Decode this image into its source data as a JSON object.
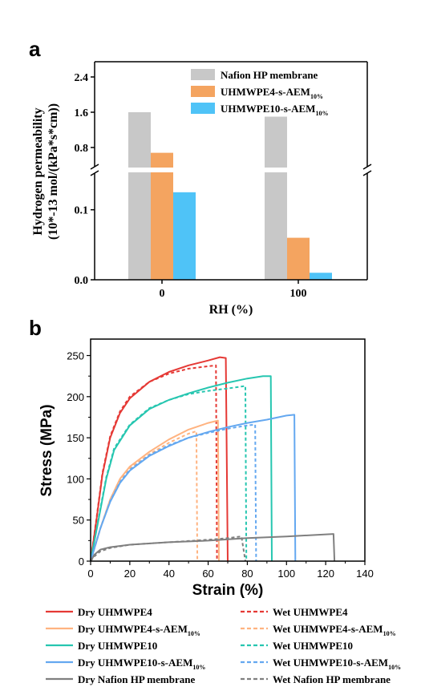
{
  "chart_data": [
    {
      "panel": "a",
      "type": "bar",
      "categories": [
        "0",
        "100"
      ],
      "xlabel": "RH (%)",
      "ylabel": [
        "Hydrogen permeability",
        "(10*-13 mol/(kPa*s*cm))"
      ],
      "ylim_lower": [
        0,
        0.15
      ],
      "ylim_upper": [
        0.4,
        2.6
      ],
      "axis_break": true,
      "yticks_lower": [
        "0.0",
        "0.1"
      ],
      "yticks_upper": [
        "0.8",
        "1.6",
        "2.4"
      ],
      "legend_position": "top-right",
      "series": [
        {
          "name": "Nafion HP membrane",
          "name_sub": "",
          "color": "#c8c8c8",
          "values": [
            1.6,
            1.5
          ]
        },
        {
          "name": "UHMWPE4-s-AEM",
          "name_sub": "10%",
          "color": "#f4a460",
          "values": [
            0.68,
            0.06
          ]
        },
        {
          "name": "UHMWPE10-s-AEM",
          "name_sub": "10%",
          "color": "#4fc3f7",
          "values": [
            0.125,
            0.01
          ]
        }
      ]
    },
    {
      "panel": "b",
      "type": "line",
      "xlabel": "Strain (%)",
      "ylabel": "Stress (MPa)",
      "xlim": [
        0,
        140
      ],
      "ylim": [
        0,
        270
      ],
      "xticks": [
        "0",
        "20",
        "40",
        "60",
        "80",
        "100",
        "120",
        "140"
      ],
      "yticks": [
        "0",
        "50",
        "100",
        "150",
        "200",
        "250"
      ],
      "legend_position": "bottom",
      "series": [
        {
          "name": "Dry UHMWPE4",
          "name_sub": "",
          "color": "#e53935",
          "dash": false,
          "points": [
            [
              0,
              0
            ],
            [
              3,
              50
            ],
            [
              6,
              105
            ],
            [
              10,
              150
            ],
            [
              15,
              180
            ],
            [
              20,
              198
            ],
            [
              30,
              218
            ],
            [
              40,
              230
            ],
            [
              50,
              238
            ],
            [
              60,
              244
            ],
            [
              66,
              248
            ],
            [
              69,
              247
            ],
            [
              70,
              0
            ]
          ]
        },
        {
          "name": "Wet UHMWPE4",
          "name_sub": "",
          "color": "#e53935",
          "dash": true,
          "points": [
            [
              0,
              0
            ],
            [
              3,
              52
            ],
            [
              6,
              107
            ],
            [
              10,
              152
            ],
            [
              15,
              182
            ],
            [
              20,
              200
            ],
            [
              30,
              218
            ],
            [
              40,
              228
            ],
            [
              50,
              234
            ],
            [
              60,
              237
            ],
            [
              64,
              238
            ],
            [
              64.5,
              0
            ]
          ]
        },
        {
          "name": "Dry UHMWPE4-s-AEM",
          "name_sub": "10%",
          "color": "#ffb380",
          "dash": false,
          "points": [
            [
              0,
              0
            ],
            [
              5,
              40
            ],
            [
              10,
              75
            ],
            [
              15,
              100
            ],
            [
              20,
              115
            ],
            [
              30,
              133
            ],
            [
              40,
              148
            ],
            [
              50,
              160
            ],
            [
              60,
              168
            ],
            [
              65,
              171
            ],
            [
              65.5,
              0
            ]
          ]
        },
        {
          "name": "Wet UHMWPE4-s-AEM",
          "name_sub": "10%",
          "color": "#ffb380",
          "dash": true,
          "points": [
            [
              0,
              0
            ],
            [
              5,
              40
            ],
            [
              10,
              74
            ],
            [
              15,
              98
            ],
            [
              20,
              113
            ],
            [
              30,
              130
            ],
            [
              40,
              144
            ],
            [
              50,
              155
            ],
            [
              54,
              158
            ],
            [
              54.5,
              0
            ]
          ]
        },
        {
          "name": "Dry UHMWPE10",
          "name_sub": "",
          "color": "#26c6b0",
          "dash": false,
          "points": [
            [
              0,
              0
            ],
            [
              4,
              50
            ],
            [
              8,
              100
            ],
            [
              12,
              135
            ],
            [
              20,
              165
            ],
            [
              30,
              185
            ],
            [
              40,
              196
            ],
            [
              50,
              204
            ],
            [
              60,
              211
            ],
            [
              70,
              217
            ],
            [
              80,
              222
            ],
            [
              88,
              225
            ],
            [
              92,
              225
            ],
            [
              92.5,
              0
            ]
          ]
        },
        {
          "name": "Wet UHMWPE10",
          "name_sub": "",
          "color": "#26c6b0",
          "dash": true,
          "points": [
            [
              0,
              0
            ],
            [
              4,
              52
            ],
            [
              8,
              102
            ],
            [
              12,
              137
            ],
            [
              20,
              166
            ],
            [
              30,
              186
            ],
            [
              40,
              196
            ],
            [
              50,
              203
            ],
            [
              60,
              207
            ],
            [
              70,
              210
            ],
            [
              79,
              213
            ],
            [
              79.5,
              0
            ]
          ]
        },
        {
          "name": "Dry UHMWPE10-s-AEM",
          "name_sub": "10%",
          "color": "#64a8f0",
          "dash": false,
          "points": [
            [
              0,
              0
            ],
            [
              5,
              40
            ],
            [
              10,
              72
            ],
            [
              15,
              95
            ],
            [
              20,
              110
            ],
            [
              30,
              128
            ],
            [
              40,
              140
            ],
            [
              50,
              150
            ],
            [
              60,
              157
            ],
            [
              70,
              163
            ],
            [
              80,
              168
            ],
            [
              90,
              172
            ],
            [
              100,
              177
            ],
            [
              104,
              178
            ],
            [
              104.5,
              0
            ]
          ]
        },
        {
          "name": "Wet UHMWPE10-s-AEM",
          "name_sub": "10%",
          "color": "#64a8f0",
          "dash": true,
          "points": [
            [
              0,
              0
            ],
            [
              5,
              40
            ],
            [
              10,
              73
            ],
            [
              15,
              96
            ],
            [
              20,
              111
            ],
            [
              30,
              129
            ],
            [
              40,
              141
            ],
            [
              50,
              150
            ],
            [
              60,
              156
            ],
            [
              70,
              161
            ],
            [
              80,
              165
            ],
            [
              84,
              166
            ],
            [
              84.5,
              0
            ]
          ]
        },
        {
          "name": "Dry Nafion HP membrane",
          "name_sub": "",
          "color": "#7f7f7f",
          "dash": false,
          "points": [
            [
              0,
              0
            ],
            [
              2,
              8
            ],
            [
              5,
              14
            ],
            [
              10,
              17
            ],
            [
              20,
              20
            ],
            [
              40,
              23
            ],
            [
              60,
              25
            ],
            [
              80,
              28
            ],
            [
              100,
              30
            ],
            [
              124,
              33
            ],
            [
              124.5,
              0
            ]
          ]
        },
        {
          "name": "Wet Nafion HP membrane",
          "name_sub": "",
          "color": "#7f7f7f",
          "dash": true,
          "points": [
            [
              0,
              0
            ],
            [
              2,
              6
            ],
            [
              5,
              12
            ],
            [
              10,
              16
            ],
            [
              20,
              20
            ],
            [
              40,
              23
            ],
            [
              60,
              26
            ],
            [
              70,
              28
            ],
            [
              77,
              30
            ],
            [
              79,
              0
            ]
          ]
        }
      ]
    }
  ],
  "panel_a_letter": "a",
  "panel_b_letter": "b"
}
